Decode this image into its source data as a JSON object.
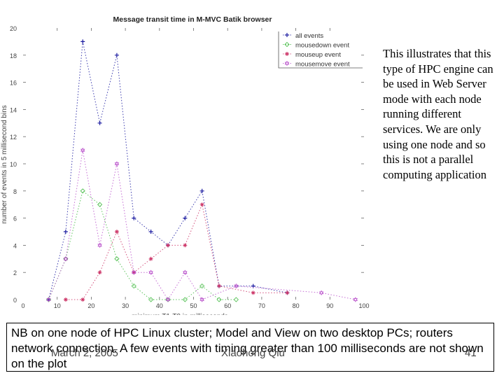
{
  "chart_data": {
    "type": "line",
    "title": "Message transit time in M-MVC Batik browser",
    "xlabel": "minimum T1-T0 in milliseconds",
    "ylabel": "number of events in 5 millisecond bins",
    "xlim": [
      0,
      100
    ],
    "ylim": [
      0,
      20
    ],
    "xticks": [
      0,
      10,
      20,
      30,
      40,
      50,
      60,
      70,
      80,
      90,
      100
    ],
    "yticks": [
      0,
      2,
      4,
      6,
      8,
      10,
      12,
      14,
      16,
      18,
      20
    ],
    "grid": false,
    "legend_position": "upper right",
    "series": [
      {
        "name": "all events",
        "marker": "+",
        "color": "#1a1aa0",
        "x": [
          7.5,
          12.5,
          17.5,
          22.5,
          27.5,
          32.5,
          37.5,
          42.5,
          47.5,
          52.5,
          57.5,
          67.5,
          77.5
        ],
        "y": [
          0,
          5,
          19,
          13,
          18,
          6,
          5,
          4,
          6,
          8,
          1,
          1,
          0.5
        ]
      },
      {
        "name": "mousedown event",
        "marker": "diamond",
        "color": "#44bb44",
        "x": [
          7.5,
          12.5,
          17.5,
          22.5,
          27.5,
          32.5,
          37.5,
          42.5,
          47.5,
          52.5,
          57.5,
          62.5
        ],
        "y": [
          0,
          3,
          8,
          7,
          3,
          1,
          0,
          0,
          0,
          1,
          0,
          0
        ]
      },
      {
        "name": "mouseup event",
        "marker": "*",
        "color": "#cc3366",
        "x": [
          12.5,
          17.5,
          22.5,
          27.5,
          32.5,
          37.5,
          42.5,
          47.5,
          52.5,
          57.5,
          67.5,
          77.5
        ],
        "y": [
          0,
          0,
          2,
          5,
          2,
          3,
          4,
          4,
          7,
          1,
          0.5,
          0.5
        ]
      },
      {
        "name": "mousemove event",
        "marker": "hexagram",
        "color": "#bb55cc",
        "x": [
          7.5,
          12.5,
          17.5,
          22.5,
          27.5,
          32.5,
          37.5,
          42.5,
          47.5,
          52.5,
          62.5,
          87.5,
          97.5
        ],
        "y": [
          0,
          3,
          11,
          4,
          10,
          2,
          2,
          0,
          2,
          0,
          1,
          0.5,
          0
        ]
      }
    ]
  },
  "side_text": "This illustrates that this type of HPC engine can be used in Web Server mode with each node running different services. We are only using one node and so this is not a parallel computing application",
  "caption": "NB on one node of HPC Linux cluster; Model and View on two desktop PCs; routers network connection. A few events with timing greater than 100 milliseconds are not shown on the plot",
  "footer": {
    "date": "March 2, 2005",
    "author": "Xiaohong Qiu",
    "page": "41"
  }
}
